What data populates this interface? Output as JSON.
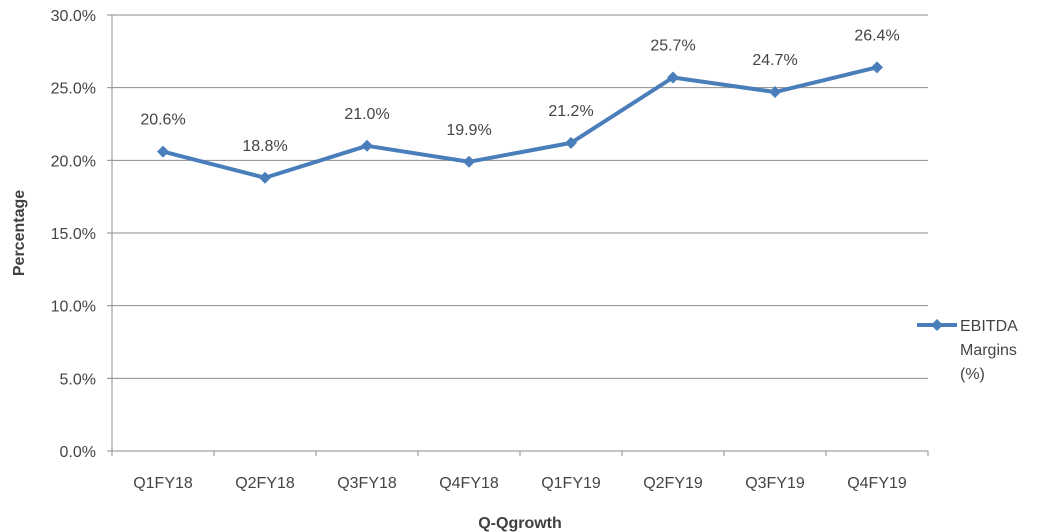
{
  "chart_data": {
    "type": "line",
    "title": "",
    "xlabel": "Q-Qgrowth",
    "ylabel": "Percentage",
    "categories": [
      "Q1FY18",
      "Q2FY18",
      "Q3FY18",
      "Q4FY18",
      "Q1FY19",
      "Q2FY19",
      "Q3FY19",
      "Q4FY19"
    ],
    "series": [
      {
        "name": "EBITDA Margins (%)",
        "legend_lines": [
          "EBITDA",
          "Margins",
          "(%)"
        ],
        "values": [
          20.6,
          18.8,
          21.0,
          19.9,
          21.2,
          25.7,
          24.7,
          26.4
        ],
        "labels": [
          "20.6%",
          "18.8%",
          "21.0%",
          "19.9%",
          "21.2%",
          "25.7%",
          "24.7%",
          "26.4%"
        ],
        "color": "#4a7ebb"
      }
    ],
    "ylim": [
      0,
      30
    ],
    "yticks": [
      0,
      5,
      10,
      15,
      20,
      25,
      30
    ],
    "ytick_labels": [
      "0.0%",
      "5.0%",
      "10.0%",
      "15.0%",
      "20.0%",
      "25.0%",
      "30.0%"
    ],
    "grid": true,
    "legend_position": "right"
  }
}
